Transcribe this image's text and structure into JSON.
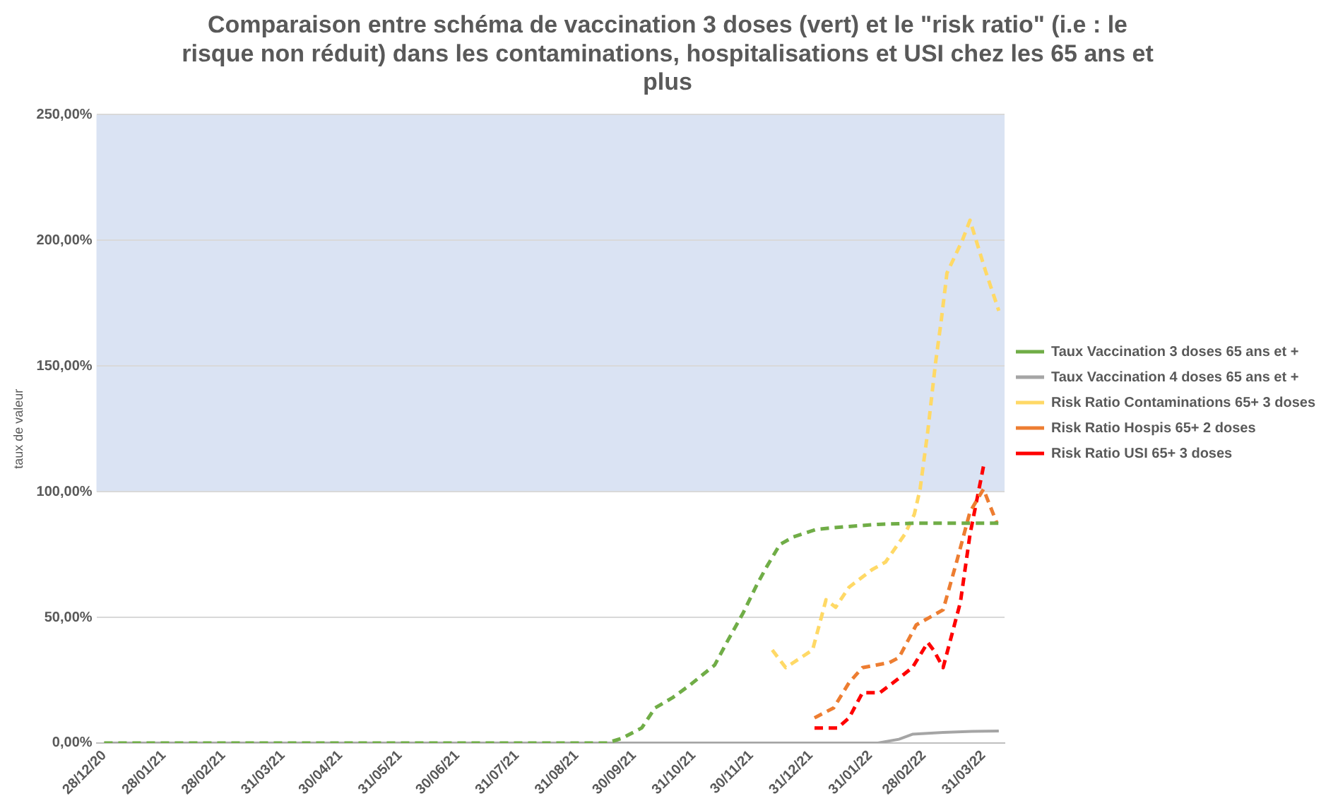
{
  "chart_data": {
    "type": "line",
    "title": "Comparaison entre schéma de vaccination 3 doses (vert) et le \"risk ratio\" (i.e : le risque non réduit) dans les contaminations, hospitalisations et USI chez les 65 ans et plus",
    "ylabel": "taux de valeur",
    "xlim": [
      "2020-12-24",
      "2022-04-11"
    ],
    "xticks": [
      {
        "value": "2020-12-28",
        "label": "28/12/20"
      },
      {
        "value": "2021-01-28",
        "label": "28/01/21"
      },
      {
        "value": "2021-02-28",
        "label": "28/02/21"
      },
      {
        "value": "2021-03-31",
        "label": "31/03/21"
      },
      {
        "value": "2021-04-30",
        "label": "30/04/21"
      },
      {
        "value": "2021-05-31",
        "label": "31/05/21"
      },
      {
        "value": "2021-06-30",
        "label": "30/06/21"
      },
      {
        "value": "2021-07-31",
        "label": "31/07/21"
      },
      {
        "value": "2021-08-31",
        "label": "31/08/21"
      },
      {
        "value": "2021-09-30",
        "label": "30/09/21"
      },
      {
        "value": "2021-10-31",
        "label": "31/10/21"
      },
      {
        "value": "2021-11-30",
        "label": "30/11/21"
      },
      {
        "value": "2021-12-31",
        "label": "31/12/21"
      },
      {
        "value": "2022-01-31",
        "label": "31/01/22"
      },
      {
        "value": "2022-02-28",
        "label": "28/02/22"
      },
      {
        "value": "2022-03-31",
        "label": "31/03/22"
      }
    ],
    "ylim": [
      0,
      250
    ],
    "yticks": [
      {
        "value": 0,
        "label": "0,00%"
      },
      {
        "value": 50,
        "label": "50,00%"
      },
      {
        "value": 100,
        "label": "100,00%"
      },
      {
        "value": 150,
        "label": "150,00%"
      },
      {
        "value": 200,
        "label": "200,00%"
      },
      {
        "value": 250,
        "label": "250,00%"
      }
    ],
    "grid": "y",
    "legend": "right",
    "marker": "none",
    "bands": [
      {
        "axis": "y",
        "from": 100,
        "to": 250,
        "color": "#dae3f3"
      }
    ],
    "series": [
      {
        "name": "Taux Vaccination 3 doses 65 ans et +",
        "color": "#70ad47",
        "line_style": "dashed",
        "x": [
          "2020-12-28",
          "2021-09-16",
          "2021-09-24",
          "2021-10-04",
          "2021-10-11",
          "2021-10-20",
          "2021-10-29",
          "2021-11-11",
          "2021-11-18",
          "2021-11-26",
          "2021-12-03",
          "2021-12-08",
          "2021-12-15",
          "2021-12-22",
          "2022-01-03",
          "2022-01-17",
          "2022-02-04",
          "2022-02-25",
          "2022-04-08"
        ],
        "values": [
          0,
          0,
          2,
          6,
          14,
          18,
          23,
          31,
          41,
          52,
          63,
          70,
          79,
          82,
          85,
          86,
          87,
          87.5,
          87.5
        ]
      },
      {
        "name": "Taux Vaccination 4 doses 65 ans et +",
        "color": "#a5a5a5",
        "line_style": "solid",
        "x": [
          "2020-12-28",
          "2022-02-04",
          "2022-02-15",
          "2022-02-22",
          "2022-03-10",
          "2022-03-25",
          "2022-04-08"
        ],
        "values": [
          0,
          0,
          1.5,
          3.5,
          4.2,
          4.6,
          4.8
        ]
      },
      {
        "name": "Risk Ratio Contaminations 65+ 3 doses",
        "color": "#ffd966",
        "line_style": "dashed",
        "x": [
          "2021-12-11",
          "2021-12-18",
          "2022-01-01",
          "2022-01-08",
          "2022-01-13",
          "2022-01-20",
          "2022-02-01",
          "2022-02-08",
          "2022-02-18",
          "2022-02-23",
          "2022-02-26",
          "2022-03-02",
          "2022-03-06",
          "2022-03-09",
          "2022-03-12",
          "2022-03-20",
          "2022-03-24",
          "2022-04-01",
          "2022-04-08"
        ],
        "values": [
          37,
          30,
          37,
          57,
          54,
          62,
          69,
          72,
          83,
          91,
          101,
          124,
          151,
          168,
          187,
          200,
          208,
          188,
          172
        ]
      },
      {
        "name": "Risk Ratio Hospis 65+ 2 doses",
        "color": "#ed7d31",
        "line_style": "dashed",
        "x": [
          "2022-01-02",
          "2022-01-12",
          "2022-01-20",
          "2022-01-27",
          "2022-02-10",
          "2022-02-15",
          "2022-02-24",
          "2022-03-03",
          "2022-03-10",
          "2022-03-17",
          "2022-03-24",
          "2022-03-31",
          "2022-04-07"
        ],
        "values": [
          10,
          14,
          24,
          30,
          32,
          34,
          47,
          50,
          53,
          72,
          92,
          101,
          87.5
        ]
      },
      {
        "name": "Risk Ratio USI 65+ 3 doses",
        "color": "#ff0000",
        "line_style": "dashed",
        "x": [
          "2022-01-02",
          "2022-01-14",
          "2022-01-20",
          "2022-01-27",
          "2022-02-05",
          "2022-02-12",
          "2022-02-22",
          "2022-03-02",
          "2022-03-05",
          "2022-03-10",
          "2022-03-19",
          "2022-03-24",
          "2022-03-31"
        ],
        "values": [
          6,
          6,
          10,
          20,
          20,
          24,
          30,
          40,
          37,
          30,
          56,
          83,
          110
        ]
      }
    ]
  }
}
